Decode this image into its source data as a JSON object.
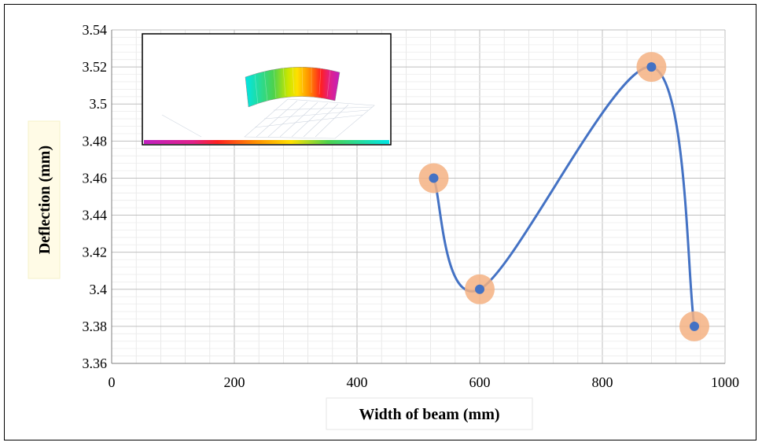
{
  "chart_data": {
    "type": "scatter",
    "title": "",
    "xlabel": "Width of beam (mm)",
    "ylabel": "Deflection (mm)",
    "xlim": [
      0,
      1000
    ],
    "ylim": [
      3.36,
      3.54
    ],
    "x_ticks": [
      "0",
      "200",
      "400",
      "600",
      "800",
      "1000"
    ],
    "y_ticks": [
      "3.36",
      "3.38",
      "3.4",
      "3.42",
      "3.44",
      "3.46",
      "3.48",
      "3.5",
      "3.52",
      "3.54"
    ],
    "grid": true,
    "line": "smooth",
    "series": [
      {
        "x": [
          525,
          600,
          880,
          950
        ],
        "y": [
          3.46,
          3.4,
          3.52,
          3.38
        ]
      }
    ],
    "colors": {
      "line": "#4472c4",
      "marker": "#4472c4",
      "highlight": "#f4b183",
      "grid": "#d9d9d9"
    },
    "inset": "fem-deflection-contour-image"
  }
}
